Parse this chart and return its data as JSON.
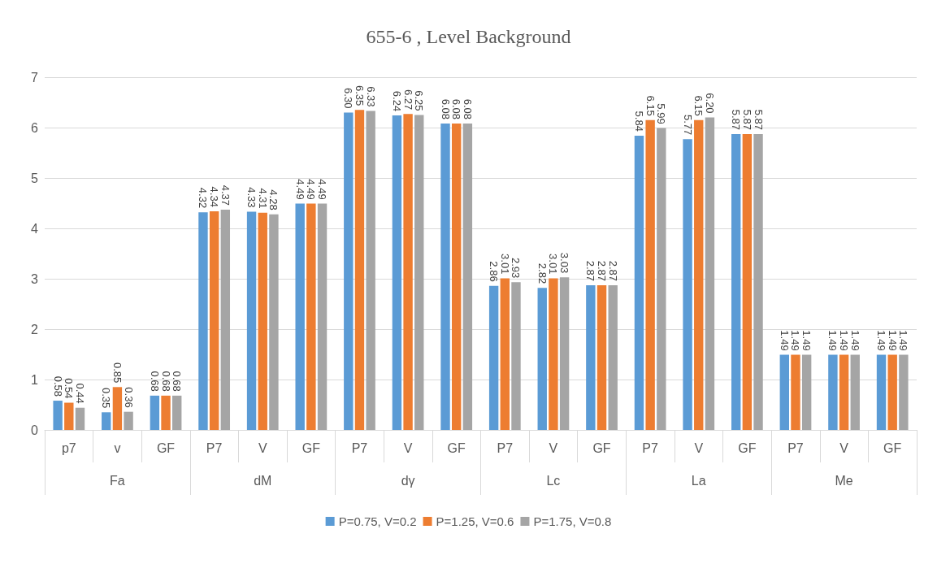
{
  "chart_data": {
    "type": "bar",
    "title": "655-6 , Level Background",
    "categories": [
      "p7",
      "v",
      "GF",
      "P7",
      "V",
      "GF",
      "P7",
      "V",
      "GF",
      "P7",
      "V",
      "GF",
      "P7",
      "V",
      "GF",
      "P7",
      "V",
      "GF"
    ],
    "annotations": [
      "Fa",
      "dM",
      "dγ",
      "Lc",
      "La",
      "Me"
    ],
    "series": [
      {
        "name": "P=0.75, V=0.2",
        "color": "#5b9bd5",
        "values": [
          0.58,
          0.35,
          0.68,
          4.32,
          4.33,
          4.49,
          6.3,
          6.24,
          6.08,
          2.86,
          2.82,
          2.87,
          5.84,
          5.77,
          5.87,
          1.49,
          1.49,
          1.49
        ],
        "value_labels": [
          "0.58",
          "0.35",
          "0.68",
          "4.32",
          "4.33",
          "4.49",
          "6.30",
          "6.24",
          "6.08",
          "2.86",
          "2.82",
          "2.87",
          "5.84",
          "5.77",
          "5.87",
          "1.49",
          "1.49",
          "1.49"
        ]
      },
      {
        "name": "P=1.25, V=0.6",
        "color": "#ed7d31",
        "values": [
          0.54,
          0.85,
          0.68,
          4.34,
          4.31,
          4.49,
          6.35,
          6.27,
          6.08,
          3.01,
          3.01,
          2.87,
          6.15,
          6.15,
          5.87,
          1.49,
          1.49,
          1.49
        ],
        "value_labels": [
          "0.54",
          "0.85",
          "0.68",
          "4.34",
          "4.31",
          "4.49",
          "6.35",
          "6.27",
          "6.08",
          "3.01",
          "3.01",
          "2.87",
          "6.15",
          "6.15",
          "5.87",
          "1.49",
          "1.49",
          "1.49"
        ]
      },
      {
        "name": "P=1.75, V=0.8",
        "color": "#a5a5a5",
        "values": [
          0.44,
          0.36,
          0.68,
          4.37,
          4.28,
          4.49,
          6.33,
          6.25,
          6.08,
          2.93,
          3.03,
          2.87,
          5.99,
          6.2,
          5.87,
          1.49,
          1.49,
          1.49
        ],
        "value_labels": [
          "0.44",
          "0.36",
          "0.68",
          "4.37",
          "4.28",
          "4.49",
          "6.33",
          "6.25",
          "6.08",
          "2.93",
          "3.03",
          "2.87",
          "5.99",
          "6.20",
          "5.87",
          "1.49",
          "1.49",
          "1.49"
        ]
      }
    ],
    "ylim": [
      0,
      7
    ],
    "yticks": [
      0,
      1,
      2,
      3,
      4,
      5,
      6,
      7
    ],
    "grid": "y",
    "legend": "bottom"
  }
}
